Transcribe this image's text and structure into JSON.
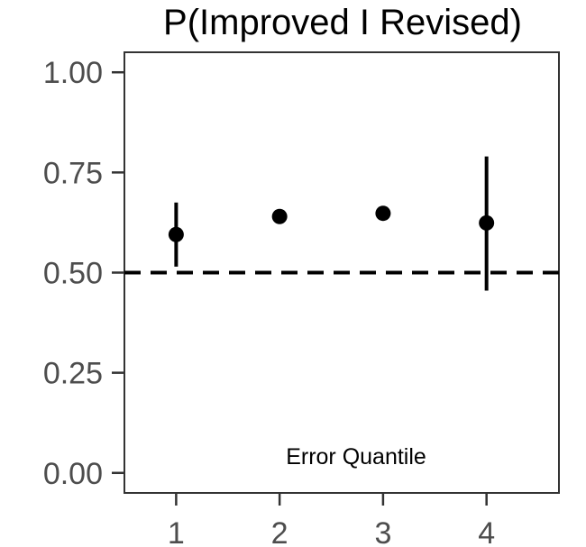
{
  "chart_data": {
    "type": "scatter",
    "title": "P(Improved I Revised)",
    "xlabel": "",
    "ylabel": "",
    "annotation": "Error Quantile",
    "x": [
      1,
      2,
      3,
      4
    ],
    "x_tick_labels": [
      "1",
      "2",
      "3",
      "4"
    ],
    "y": [
      0.595,
      0.64,
      0.648,
      0.624
    ],
    "error_bars": [
      {
        "x": 1,
        "lower": 0.515,
        "upper": 0.675
      },
      {
        "x": 2,
        "lower": null,
        "upper": null
      },
      {
        "x": 3,
        "lower": null,
        "upper": null
      },
      {
        "x": 4,
        "lower": 0.455,
        "upper": 0.79
      }
    ],
    "xlim": [
      0.5,
      4.7
    ],
    "ylim": [
      -0.05,
      1.05
    ],
    "y_ticks": [
      0,
      0.25,
      0.5,
      0.75,
      1.0
    ],
    "y_tick_labels": [
      "0.00",
      "0.25",
      "0.50",
      "0.75",
      "1.00"
    ],
    "reference_line": {
      "y": 0.5,
      "style": "dashed"
    },
    "grid": false,
    "legend": "none",
    "colors": {
      "points": "#000000",
      "axis_text": "#4d4d4d",
      "panel_border": "#333333"
    }
  }
}
